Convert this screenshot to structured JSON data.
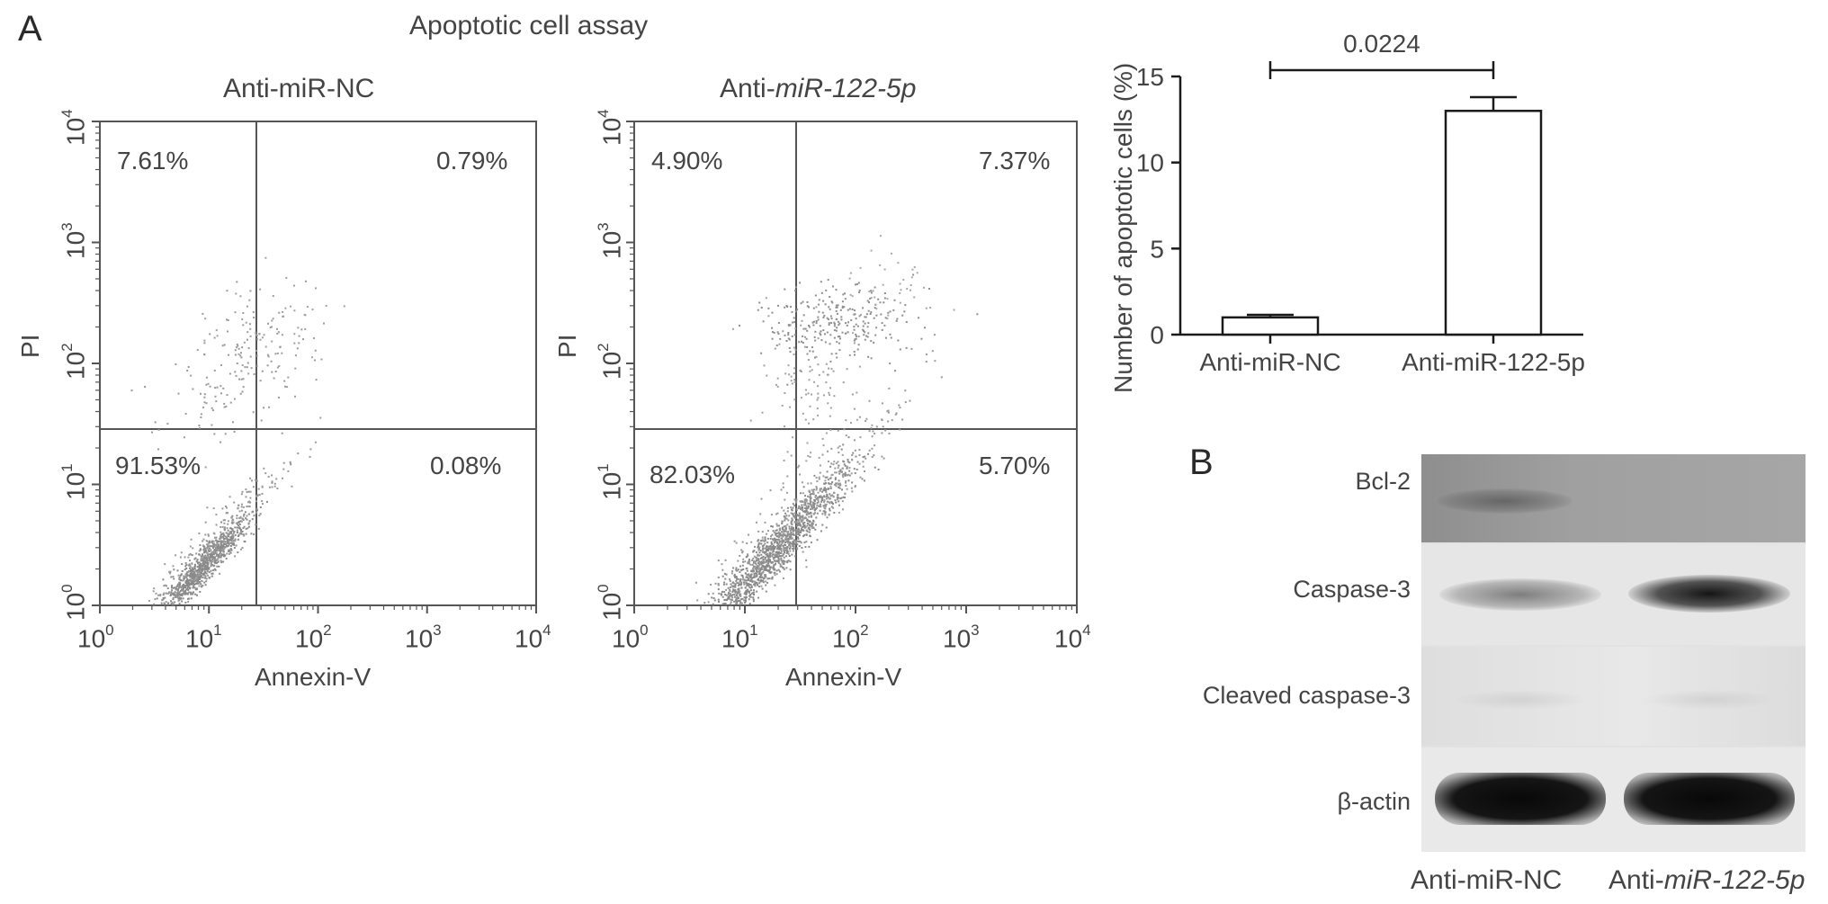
{
  "figure": {
    "panel_a_letter": "A",
    "panel_b_letter": "B",
    "assay_title": "Apoptotic cell assay"
  },
  "flow": {
    "x_label": "Annexin-V",
    "y_label": "PI",
    "x_ticks": [
      {
        "base": "10",
        "exp": "0"
      },
      {
        "base": "10",
        "exp": "1"
      },
      {
        "base": "10",
        "exp": "2"
      },
      {
        "base": "10",
        "exp": "3"
      },
      {
        "base": "10",
        "exp": "4"
      }
    ],
    "y_ticks": [
      {
        "base": "10",
        "exp": "0"
      },
      {
        "base": "10",
        "exp": "1"
      },
      {
        "base": "10",
        "exp": "2"
      },
      {
        "base": "10",
        "exp": "3"
      },
      {
        "base": "10",
        "exp": "4"
      }
    ],
    "plots": [
      {
        "title": "Anti-miR-NC",
        "upper_left": "7.61%",
        "upper_right": "0.79%",
        "lower_left": "91.53%",
        "lower_right": "0.08%"
      },
      {
        "title_prefix": "Anti-",
        "title_italic": "miR-122-5p",
        "upper_left": "4.90%",
        "upper_right": "7.37%",
        "lower_left": "82.03%",
        "lower_right": "5.70%"
      }
    ]
  },
  "chart_data": {
    "type": "bar",
    "categories": [
      "Anti-miR-NC",
      "Anti-miR-122-5p"
    ],
    "values": [
      1.0,
      13.0
    ],
    "errors": [
      0.15,
      0.8
    ],
    "ylabel": "Number of apoptotic cells (%)",
    "xlabel": "",
    "ylim": [
      0,
      15
    ],
    "yticks": [
      0,
      5,
      10,
      15
    ],
    "significance": {
      "label": "0.0224",
      "between": [
        0,
        1
      ]
    },
    "bar_fill": "#ffffff",
    "bar_stroke": "#1a1a1a"
  },
  "blot": {
    "rows": [
      "Bcl-2",
      "Caspase-3",
      "Cleaved caspase-3",
      "β-actin"
    ],
    "lane_1": "Anti-miR-NC",
    "lane_2_prefix": "Anti-",
    "lane_2_italic": "miR-122-5p"
  }
}
